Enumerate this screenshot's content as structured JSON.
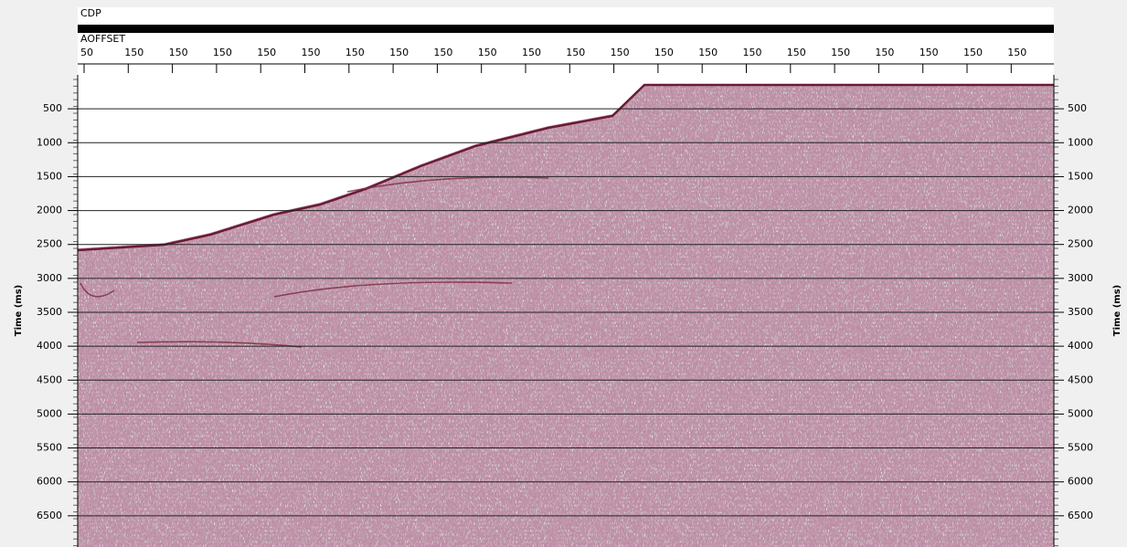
{
  "header": {
    "cdp_label": "CDP",
    "offset_label": "AOFFSET",
    "offset_ticks": [
      "50",
      "150",
      "150",
      "150",
      "150",
      "150",
      "150",
      "150",
      "150",
      "150",
      "150",
      "150",
      "150",
      "150",
      "150",
      "150",
      "150",
      "150",
      "150",
      "150",
      "150",
      "150"
    ]
  },
  "time_axis": {
    "label": "Time (ms)",
    "range": [
      0,
      6960
    ],
    "ticks": [
      500,
      1000,
      1500,
      2000,
      2500,
      3000,
      3500,
      4000,
      4500,
      5000,
      5500,
      6000,
      6500
    ]
  }
}
